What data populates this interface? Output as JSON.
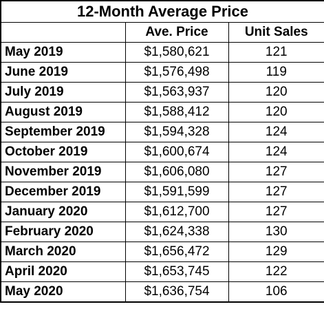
{
  "table": {
    "title": "12-Month Average Price",
    "headers": [
      "",
      "Ave. Price",
      "Unit Sales"
    ],
    "rows": [
      {
        "month": "May 2019",
        "price": "$1,580,621",
        "units": "121"
      },
      {
        "month": "June 2019",
        "price": "$1,576,498",
        "units": "119"
      },
      {
        "month": "July 2019",
        "price": "$1,563,937",
        "units": "120"
      },
      {
        "month": "August 2019",
        "price": "$1,588,412",
        "units": "120"
      },
      {
        "month": "September 2019",
        "price": "$1,594,328",
        "units": "124"
      },
      {
        "month": "October 2019",
        "price": "$1,600,674",
        "units": "124"
      },
      {
        "month": "November 2019",
        "price": "$1,606,080",
        "units": "127"
      },
      {
        "month": "December 2019",
        "price": "$1,591,599",
        "units": "127"
      },
      {
        "month": "January 2020",
        "price": "$1,612,700",
        "units": "127"
      },
      {
        "month": "February 2020",
        "price": "$1,624,338",
        "units": "130"
      },
      {
        "month": "March 2020",
        "price": "$1,656,472",
        "units": "129"
      },
      {
        "month": "April 2020",
        "price": "$1,653,745",
        "units": "122"
      },
      {
        "month": "May 2020",
        "price": "$1,636,754",
        "units": "106"
      }
    ]
  }
}
